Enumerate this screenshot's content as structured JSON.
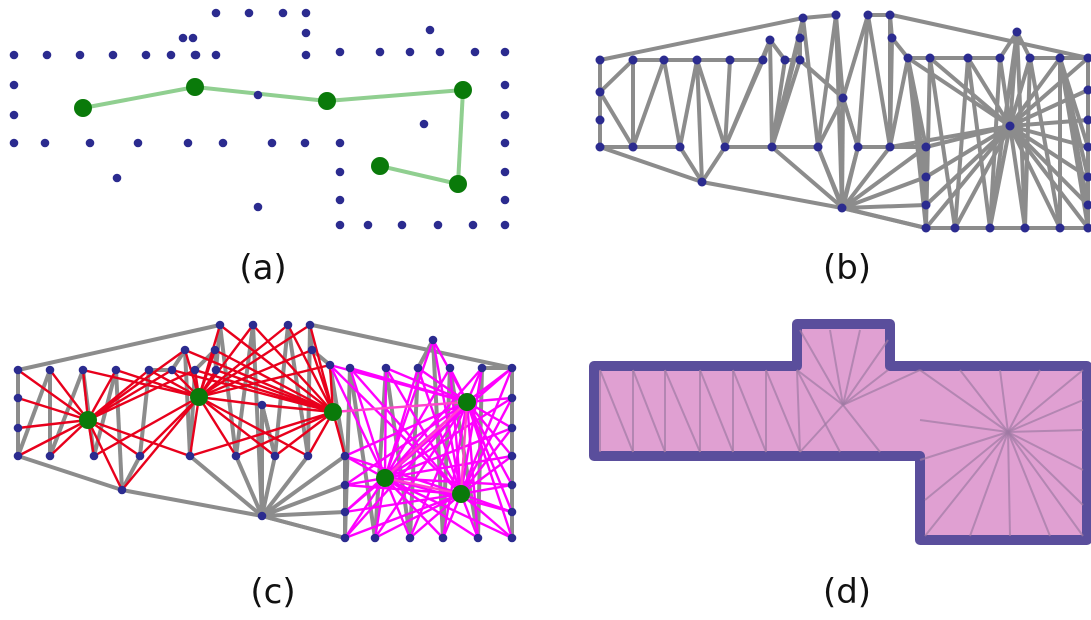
{
  "panels": [
    {
      "id": "a",
      "caption": "(a)"
    },
    {
      "id": "b",
      "caption": "(b)"
    },
    {
      "id": "c",
      "caption": "(c)"
    },
    {
      "id": "d",
      "caption": "(d)"
    }
  ],
  "colors": {
    "boundary_point": "#2b2b8f",
    "path_node": "#0a7a0a",
    "path_edge": "#90cf90",
    "mesh_edge": "#8c8c8c",
    "visibility_red": "#e8001c",
    "visibility_pink": "#ff44cc",
    "visibility_magenta": "#ff00ff",
    "region_fill": "#e0a0d2",
    "region_border": "#5a4e9c"
  }
}
